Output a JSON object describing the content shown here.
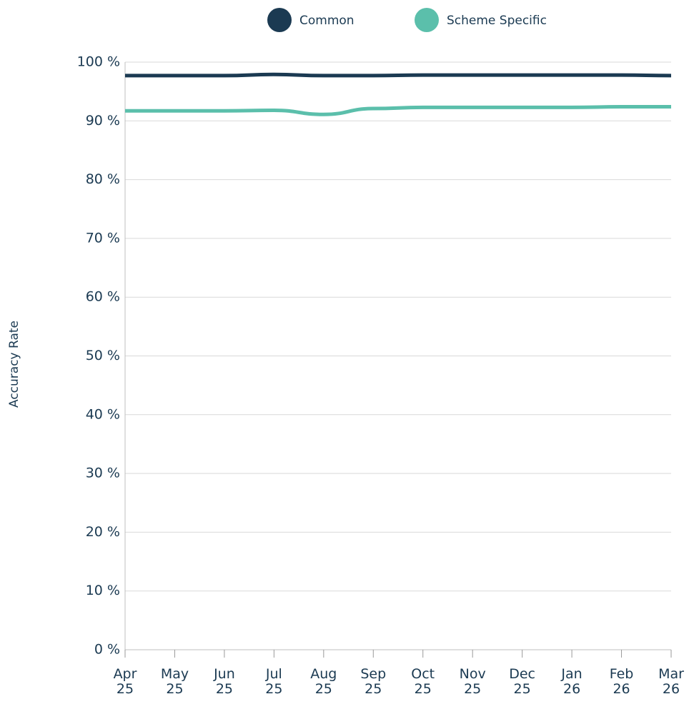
{
  "chart_data": {
    "type": "line",
    "y_label": "Accuracy Rate",
    "categories": [
      "Apr 25",
      "May 25",
      "Jun 25",
      "Jul 25",
      "Aug 25",
      "Sep 25",
      "Oct 25",
      "Nov 25",
      "Dec 25",
      "Jan 26",
      "Feb 26",
      "Mar 26"
    ],
    "series": [
      {
        "name": "Common",
        "color": "#1b3a52",
        "values": [
          97.7,
          97.7,
          97.7,
          97.9,
          97.7,
          97.7,
          97.8,
          97.8,
          97.8,
          97.8,
          97.8,
          97.7
        ]
      },
      {
        "name": "Scheme Specific",
        "color": "#5bbfab",
        "values": [
          91.7,
          91.7,
          91.7,
          91.8,
          91.1,
          92.1,
          92.3,
          92.3,
          92.3,
          92.3,
          92.4,
          92.4
        ]
      }
    ],
    "ylim": [
      0,
      100
    ],
    "yticks": [
      {
        "value": 0,
        "label": "0 %"
      },
      {
        "value": 10,
        "label": "10 %"
      },
      {
        "value": 20,
        "label": "20 %"
      },
      {
        "value": 30,
        "label": "30 %"
      },
      {
        "value": 40,
        "label": "40 %"
      },
      {
        "value": 50,
        "label": "50 %"
      },
      {
        "value": 60,
        "label": "60 %"
      },
      {
        "value": 70,
        "label": "70 %"
      },
      {
        "value": 80,
        "label": "80 %"
      },
      {
        "value": 90,
        "label": "90 %"
      },
      {
        "value": 100,
        "label": "100 %"
      }
    ],
    "grid": true,
    "legend": "top"
  }
}
